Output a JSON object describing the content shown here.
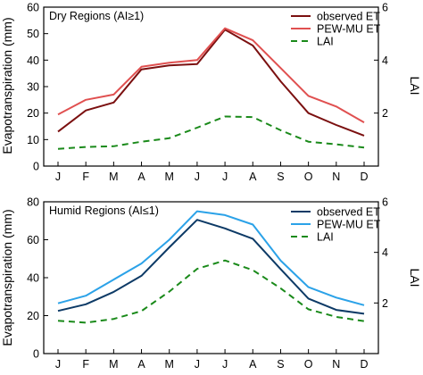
{
  "chart_data": [
    {
      "type": "line",
      "panel_label": "Dry Regions (AI≥1)",
      "categories": [
        "J",
        "F",
        "M",
        "A",
        "M",
        "J",
        "J",
        "A",
        "S",
        "O",
        "N",
        "D"
      ],
      "left_ylabel": "Evapotranspiration (mm)",
      "right_ylabel": "LAI",
      "left_ylim": [
        0,
        60
      ],
      "left_yticks": [
        0,
        10,
        20,
        30,
        40,
        50,
        60
      ],
      "right_ylim": [
        0,
        6
      ],
      "right_yticks": [
        2,
        4,
        6
      ],
      "grid": false,
      "legend_position": "top-right",
      "series": [
        {
          "name": "observed ET",
          "axis": "left",
          "color": "#7b1010",
          "dash": "solid",
          "values": [
            13,
            21,
            24,
            36.5,
            38,
            38.5,
            51.5,
            45.5,
            32,
            20,
            15.5,
            11.5
          ]
        },
        {
          "name": "PEW-MU ET",
          "axis": "left",
          "color": "#e05050",
          "dash": "solid",
          "values": [
            19.5,
            25,
            27,
            37.5,
            39,
            40,
            52,
            47.5,
            37,
            26.5,
            22.5,
            16.5
          ]
        },
        {
          "name": "LAI",
          "axis": "right",
          "color": "#1a8a1a",
          "dash": "dashed",
          "values": [
            0.65,
            0.72,
            0.75,
            0.92,
            1.05,
            1.45,
            1.87,
            1.85,
            1.35,
            0.92,
            0.82,
            0.7
          ]
        }
      ]
    },
    {
      "type": "line",
      "panel_label": "Humid Regions (AI≤1)",
      "categories": [
        "J",
        "F",
        "M",
        "A",
        "M",
        "J",
        "J",
        "A",
        "S",
        "O",
        "N",
        "D"
      ],
      "left_ylabel": "Evapotranspiration (mm)",
      "right_ylabel": "LAI",
      "left_ylim": [
        0,
        80
      ],
      "left_yticks": [
        0,
        20,
        40,
        60,
        80
      ],
      "right_ylim": [
        0,
        6
      ],
      "right_yticks": [
        2,
        4,
        6
      ],
      "grid": false,
      "legend_position": "top-right",
      "series": [
        {
          "name": "observed ET",
          "axis": "left",
          "color": "#0d3a66",
          "dash": "solid",
          "values": [
            22.5,
            26,
            32.5,
            41,
            56,
            70.5,
            66,
            60.5,
            44.5,
            29,
            23,
            21
          ]
        },
        {
          "name": "PEW-MU ET",
          "axis": "left",
          "color": "#2ba2e8",
          "dash": "solid",
          "values": [
            26.5,
            30.5,
            39,
            47.5,
            60,
            75,
            73,
            68,
            49,
            35,
            29.5,
            25.5
          ]
        },
        {
          "name": "LAI",
          "axis": "right",
          "color": "#1a8a1a",
          "dash": "dashed",
          "values": [
            1.3,
            1.22,
            1.37,
            1.68,
            2.45,
            3.35,
            3.68,
            3.3,
            2.58,
            1.75,
            1.45,
            1.28
          ]
        }
      ]
    }
  ]
}
